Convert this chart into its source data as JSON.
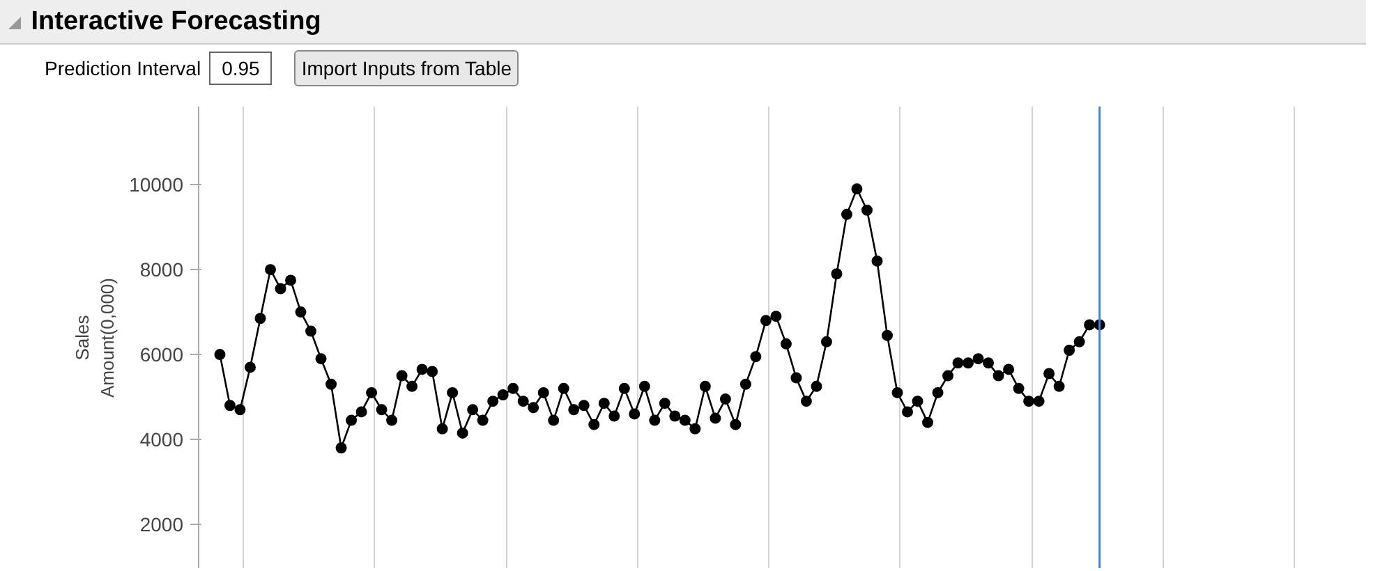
{
  "chart_data": {
    "type": "line",
    "title": "Interactive Forecasting",
    "annotations": [
      "Prediction Interval",
      "0.95",
      "Import Inputs from Table"
    ],
    "ylabel": "Sales\nAmount(0,000)",
    "categories": [
      null,
      null,
      null,
      null,
      null,
      null,
      null,
      null,
      null,
      null,
      null,
      null,
      null,
      null,
      null,
      null,
      null,
      null,
      null,
      null,
      null,
      null,
      null,
      null,
      null,
      null,
      null,
      null,
      null,
      null,
      null,
      null,
      null,
      null,
      null,
      null,
      null,
      null,
      null,
      null,
      null,
      null,
      null,
      null,
      null,
      null,
      null,
      null,
      null,
      null,
      null,
      null,
      null,
      null,
      null,
      null,
      null,
      null,
      null,
      null,
      null,
      null,
      null,
      null,
      null,
      null,
      null,
      null,
      null,
      null,
      null,
      null,
      null,
      null,
      null,
      null,
      null,
      null,
      null,
      null,
      null,
      null,
      null,
      null,
      null,
      null,
      null,
      null
    ],
    "series": [
      {
        "color": "#000000",
        "values": [
          6000,
          4800,
          4700,
          5700,
          6850,
          8000,
          7550,
          7750,
          7000,
          6550,
          5900,
          5300,
          3800,
          4450,
          4650,
          5100,
          4700,
          4450,
          5500,
          5250,
          5650,
          5600,
          4250,
          5100,
          4150,
          4700,
          4450,
          4900,
          5050,
          5200,
          4900,
          4750,
          5100,
          4450,
          5200,
          4700,
          4800,
          4350,
          4850,
          4550,
          5200,
          4600,
          5250,
          4450,
          4850,
          4550,
          4450,
          4250,
          5250,
          4500,
          4950,
          4350,
          5300,
          5950,
          6800,
          6900,
          6250,
          5450,
          4900,
          5250,
          6300,
          7900,
          9300,
          9900,
          9400,
          8200,
          6450,
          5100,
          4650,
          4900,
          4400,
          5100,
          5500,
          5800,
          5800,
          5900,
          5800,
          5500,
          5650,
          5200,
          4900,
          4900,
          5550,
          5250,
          6100,
          6300,
          6700,
          6700
        ]
      }
    ],
    "marker": "circle",
    "line_style": "solid",
    "ylim": [
      950,
      11840
    ],
    "yticks": [
      2000,
      4000,
      6000,
      8000,
      10000
    ],
    "grid": "x",
    "tick_labels": "y"
  }
}
